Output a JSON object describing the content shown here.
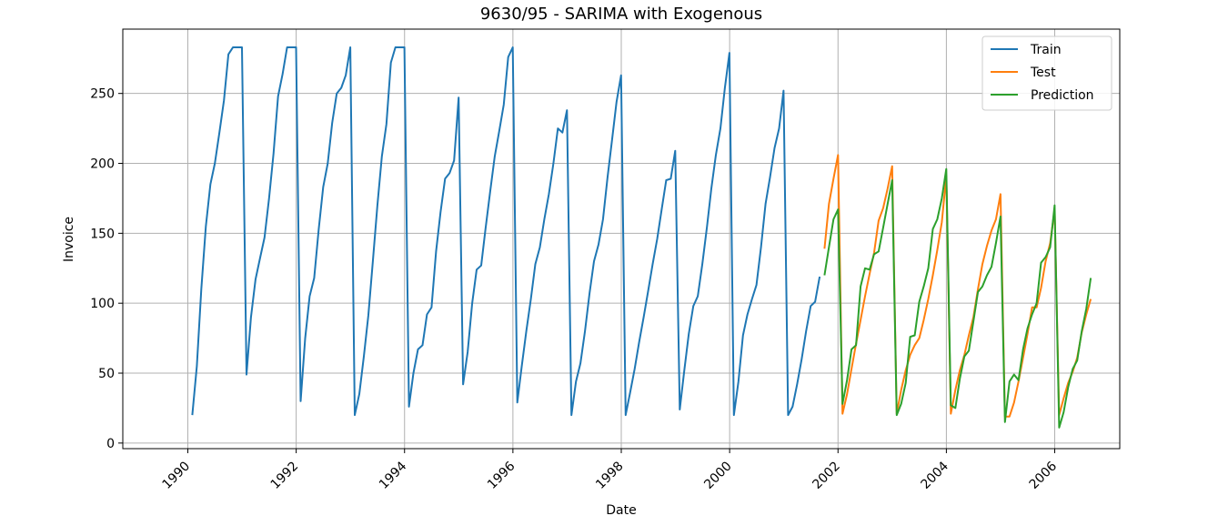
{
  "chart_data": {
    "type": "line",
    "title": "9630/95 - SARIMA with Exogenous",
    "xlabel": "Date",
    "ylabel": "Invoice",
    "xlim": [
      1988.8,
      2007.2
    ],
    "ylim": [
      -4,
      296
    ],
    "xticks": [
      1990,
      1992,
      1994,
      1996,
      1998,
      2000,
      2002,
      2004,
      2006
    ],
    "yticks": [
      0,
      50,
      100,
      150,
      200,
      250
    ],
    "grid": true,
    "legend_position": "top-right",
    "series": [
      {
        "name": "Train",
        "color": "#1f77b4",
        "x_start": 1990.083,
        "step": 0.0833,
        "values": [
          20,
          55,
          110,
          155,
          185,
          200,
          222,
          245,
          278,
          283,
          283,
          283,
          49,
          90,
          117,
          132,
          147,
          175,
          207,
          248,
          264,
          283,
          283,
          283,
          30,
          75,
          105,
          118,
          153,
          183,
          200,
          229,
          250,
          254,
          263,
          283,
          20,
          35,
          62,
          91,
          130,
          170,
          205,
          228,
          272,
          283,
          283,
          283,
          26,
          50,
          67,
          70,
          92,
          97,
          137,
          165,
          189,
          193,
          202,
          247,
          42,
          65,
          100,
          124,
          127,
          154,
          180,
          205,
          223,
          242,
          276,
          283,
          29,
          55,
          80,
          103,
          128,
          140,
          160,
          178,
          200,
          225,
          222,
          238,
          20,
          44,
          57,
          80,
          107,
          130,
          142,
          160,
          190,
          217,
          244,
          263,
          20,
          36,
          53,
          72,
          90,
          109,
          128,
          146,
          167,
          188,
          189,
          209,
          24,
          52,
          78,
          98,
          105,
          128,
          154,
          182,
          206,
          225,
          254,
          279,
          20,
          44,
          77,
          92,
          103,
          113,
          140,
          171,
          190,
          211,
          225,
          252,
          20,
          26,
          42,
          60,
          80,
          98,
          101,
          119
        ]
      },
      {
        "name": "Test",
        "color": "#ff7f0e",
        "x_start": 2001.75,
        "step": 0.0833,
        "values": [
          139,
          171,
          189,
          206,
          21,
          35,
          53,
          71,
          88,
          105,
          121,
          136,
          159,
          168,
          182,
          198,
          21,
          38,
          52,
          63,
          70,
          75,
          88,
          103,
          120,
          138,
          158,
          191,
          21,
          38,
          52,
          63,
          77,
          90,
          110,
          128,
          141,
          152,
          160,
          178,
          19,
          19,
          29,
          44,
          61,
          78,
          97,
          97,
          111,
          130,
          143,
          167,
          20,
          32,
          43,
          51,
          61,
          79,
          92,
          103
        ]
      },
      {
        "name": "Prediction",
        "color": "#2ca02c",
        "x_start": 2001.75,
        "step": 0.0833,
        "values": [
          120,
          140,
          160,
          167,
          28,
          45,
          67,
          70,
          112,
          125,
          124,
          135,
          137,
          154,
          171,
          188,
          20,
          28,
          43,
          76,
          77,
          101,
          112,
          125,
          153,
          160,
          175,
          196,
          27,
          25,
          46,
          62,
          66,
          87,
          108,
          112,
          120,
          126,
          143,
          162,
          15,
          44,
          49,
          45,
          67,
          82,
          92,
          100,
          129,
          133,
          140,
          170,
          11,
          22,
          40,
          53,
          59,
          80,
          96,
          118
        ]
      }
    ]
  }
}
